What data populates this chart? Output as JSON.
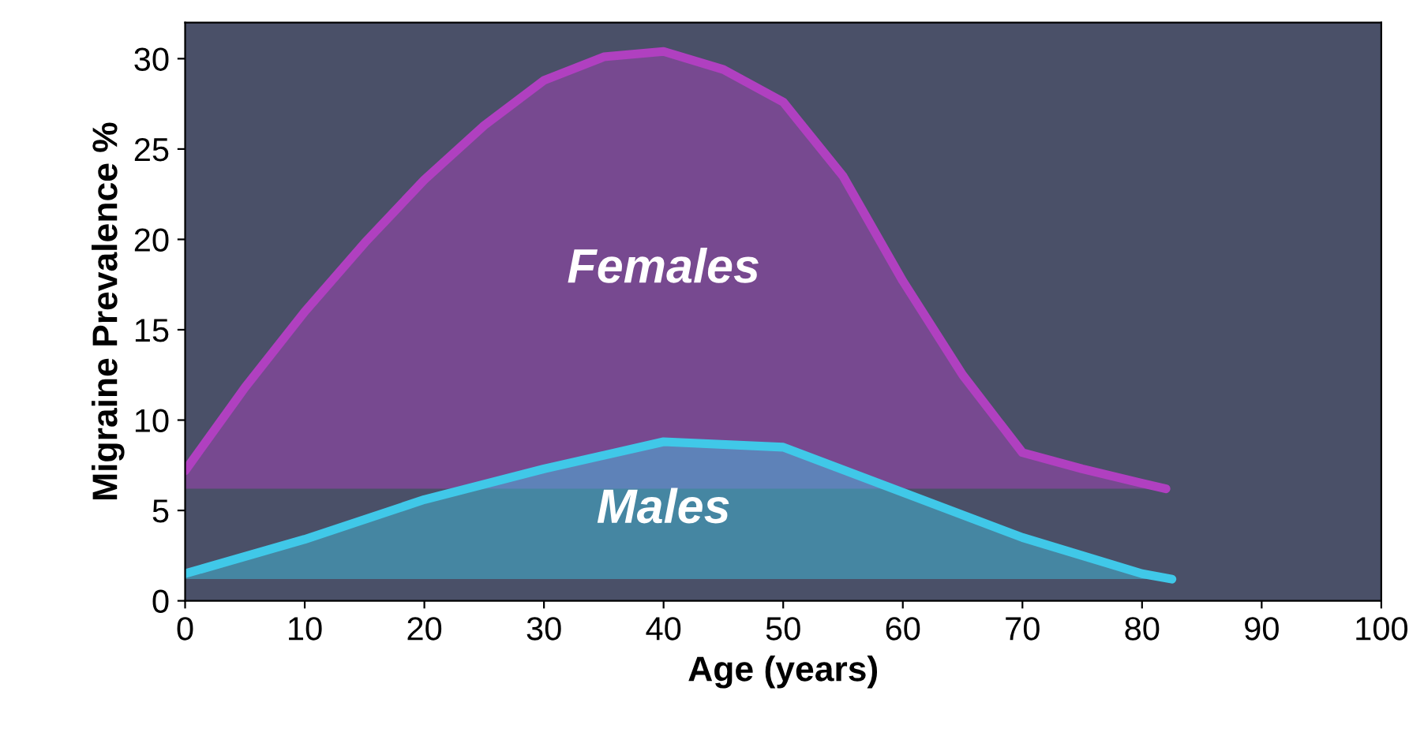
{
  "chart_data": {
    "type": "area",
    "xlabel": "Age (years)",
    "ylabel": "Migraine Prevalence %",
    "xlim": [
      0,
      100
    ],
    "xticks": [
      0,
      10,
      20,
      30,
      40,
      50,
      60,
      70,
      80,
      90,
      100
    ],
    "ylim": [
      0,
      32
    ],
    "yticks": [
      0,
      5,
      10,
      15,
      20,
      25,
      30
    ],
    "grid": false,
    "legend": false,
    "series": [
      {
        "name": "Females",
        "color": "#b040c0",
        "x": [
          0,
          5,
          10,
          15,
          20,
          25,
          30,
          35,
          40,
          45,
          50,
          55,
          60,
          65,
          70,
          75,
          80,
          82
        ],
        "values": [
          7.2,
          11.8,
          16,
          19.8,
          23.3,
          26.3,
          28.8,
          30.1,
          30.4,
          29.4,
          27.6,
          23.5,
          17.7,
          12.5,
          8.2,
          7.3,
          6.5,
          6.2
        ]
      },
      {
        "name": "Males",
        "color": "#40c8e8",
        "x": [
          0,
          10,
          20,
          30,
          40,
          50,
          60,
          70,
          80,
          82.5
        ],
        "values": [
          1.5,
          3.4,
          5.6,
          7.3,
          8.8,
          8.5,
          6.0,
          3.5,
          1.5,
          1.2
        ]
      }
    ]
  }
}
